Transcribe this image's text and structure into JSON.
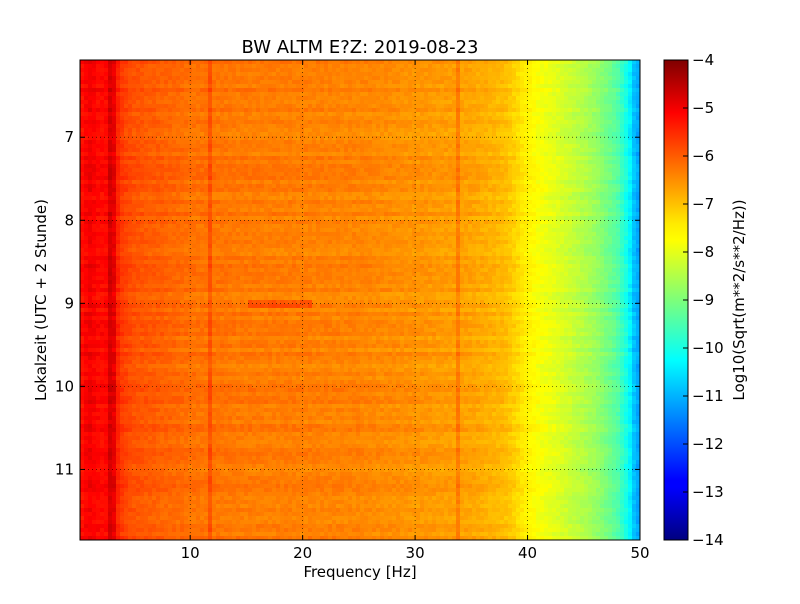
{
  "chart_data": {
    "type": "heatmap",
    "title": "BW ALTM E?Z: 2019-08-23",
    "xlabel": "Frequency [Hz]",
    "ylabel": "Lokalzeit (UTC + 2 Stunde)",
    "xlim": [
      0.2,
      50
    ],
    "ylim": [
      11.85,
      6.07
    ],
    "y_inverted": true,
    "grid": true,
    "x_ticks": [
      10,
      20,
      30,
      40,
      50
    ],
    "y_ticks": [
      7,
      8,
      9,
      10,
      11
    ],
    "colorbar": {
      "label": "Log10(Sqrt(m**2/s**2/Hz))",
      "range": [
        -14,
        -4
      ],
      "ticks": [
        -4,
        -5,
        -6,
        -7,
        -8,
        -9,
        -10,
        -11,
        -12,
        -13,
        -14
      ],
      "colormap": "jet"
    },
    "spectral_profile": {
      "frequency_hz": [
        0.2,
        1,
        2,
        3,
        4,
        5,
        10,
        15,
        20,
        25,
        30,
        35,
        38,
        39,
        40,
        41,
        42,
        44,
        46,
        48,
        49,
        49.5,
        50
      ],
      "log10_amplitude": [
        -5.3,
        -5.0,
        -5.2,
        -5.1,
        -5.7,
        -5.9,
        -6.2,
        -6.3,
        -6.35,
        -6.4,
        -6.55,
        -6.7,
        -6.95,
        -7.2,
        -7.55,
        -7.8,
        -7.95,
        -8.3,
        -8.7,
        -9.4,
        -10.2,
        -10.9,
        -11.2
      ]
    },
    "features": [
      {
        "type": "vertical_line",
        "frequency_hz": 11.7,
        "note": "strong narrowband line"
      },
      {
        "type": "vertical_line",
        "frequency_hz": 3,
        "note": "strong low-frequency line"
      },
      {
        "type": "horizontal_band",
        "time": 9.0,
        "freq_range": [
          15,
          21
        ],
        "note": "elevated energy"
      },
      {
        "type": "vertical_line",
        "frequency_hz": 33.8,
        "note": "weak line"
      }
    ]
  }
}
